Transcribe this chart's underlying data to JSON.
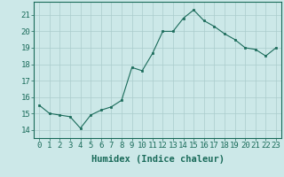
{
  "x": [
    0,
    1,
    2,
    3,
    4,
    5,
    6,
    7,
    8,
    9,
    10,
    11,
    12,
    13,
    14,
    15,
    16,
    17,
    18,
    19,
    20,
    21,
    22,
    23
  ],
  "y": [
    15.5,
    15.0,
    14.9,
    14.8,
    14.1,
    14.9,
    15.2,
    15.4,
    15.8,
    17.8,
    17.6,
    18.65,
    20.0,
    20.0,
    20.8,
    21.3,
    20.65,
    20.3,
    19.85,
    19.5,
    19.0,
    18.9,
    18.5,
    19.0
  ],
  "line_color": "#1a6b5a",
  "marker_color": "#1a6b5a",
  "bg_color": "#cce8e8",
  "grid_color": "#aacccc",
  "xlabel": "Humidex (Indice chaleur)",
  "xlabel_fontsize": 7.5,
  "tick_fontsize": 6.5,
  "ylim": [
    13.5,
    21.8
  ],
  "xlim": [
    -0.5,
    23.5
  ],
  "yticks": [
    14,
    15,
    16,
    17,
    18,
    19,
    20,
    21
  ],
  "xticks": [
    0,
    1,
    2,
    3,
    4,
    5,
    6,
    7,
    8,
    9,
    10,
    11,
    12,
    13,
    14,
    15,
    16,
    17,
    18,
    19,
    20,
    21,
    22,
    23
  ]
}
